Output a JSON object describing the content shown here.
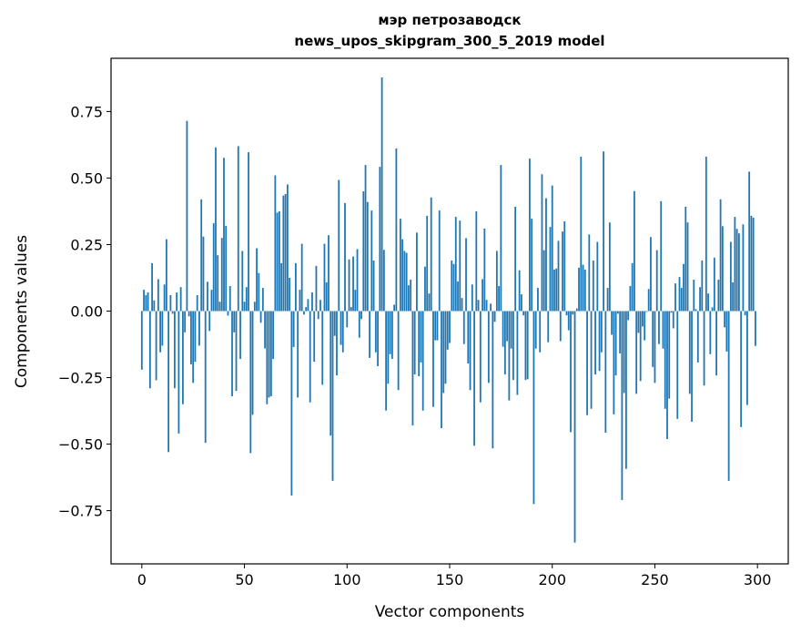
{
  "chart_data": {
    "type": "bar",
    "title": "мэр петрозаводск",
    "subtitle": "news_upos_skipgram_300_5_2019 model",
    "xlabel": "Vector components",
    "ylabel": "Components values",
    "xlim": [
      -15,
      315
    ],
    "ylim": [
      -0.95,
      0.95
    ],
    "xticks": [
      0,
      50,
      100,
      150,
      200,
      250,
      300
    ],
    "xtick_labels": [
      "0",
      "50",
      "100",
      "150",
      "200",
      "250",
      "300"
    ],
    "yticks": [
      -0.75,
      -0.5,
      -0.25,
      0.0,
      0.25,
      0.5,
      0.75
    ],
    "ytick_labels": [
      "−0.75",
      "−0.50",
      "−0.25",
      "0.00",
      "0.25",
      "0.50",
      "0.75"
    ],
    "grid": false,
    "color": "#1f77b4",
    "values": [
      -0.22,
      0.08,
      0.06,
      0.07,
      -0.29,
      0.18,
      0.04,
      -0.26,
      0.12,
      -0.155,
      -0.13,
      0.1,
      0.27,
      -0.53,
      0.06,
      -0.01,
      -0.29,
      0.07,
      -0.46,
      0.09,
      -0.35,
      -0.08,
      0.715,
      -0.02,
      -0.2,
      -0.27,
      -0.19,
      0.06,
      -0.13,
      0.42,
      0.28,
      -0.495,
      0.11,
      -0.075,
      0.08,
      0.33,
      0.615,
      0.21,
      0.035,
      0.275,
      0.576,
      0.32,
      -0.017,
      0.094,
      -0.32,
      -0.08,
      -0.3,
      0.62,
      -0.18,
      0.226,
      0.035,
      0.09,
      0.597,
      -0.534,
      -0.39,
      0.035,
      0.236,
      0.143,
      -0.044,
      0.087,
      -0.14,
      -0.35,
      -0.325,
      -0.32,
      -0.18,
      0.51,
      0.37,
      0.375,
      0.18,
      0.434,
      0.44,
      0.476,
      0.125,
      -0.693,
      -0.135,
      0.18,
      -0.325,
      0.08,
      0.253,
      -0.013,
      0.015,
      0.045,
      -0.343,
      0.07,
      -0.19,
      0.17,
      -0.03,
      0.042,
      -0.277,
      0.253,
      0.108,
      0.285,
      -0.468,
      -0.638,
      -0.093,
      -0.242,
      0.493,
      -0.127,
      -0.155,
      0.406,
      -0.061,
      0.194,
      0.015,
      0.205,
      0.08,
      0.233,
      -0.1,
      -0.03,
      0.45,
      0.549,
      0.41,
      -0.176,
      0.378,
      0.19,
      -0.155,
      -0.207,
      0.542,
      0.878,
      0.23,
      -0.374,
      -0.273,
      -0.162,
      -0.18,
      0.024,
      0.611,
      -0.297,
      0.347,
      0.27,
      0.226,
      0.219,
      0.097,
      0.118,
      -0.43,
      -0.238,
      0.295,
      -0.245,
      -0.193,
      -0.374,
      0.167,
      0.358,
      0.066,
      0.427,
      -0.36,
      -0.11,
      -0.11,
      0.378,
      -0.44,
      -0.308,
      -0.273,
      -0.145,
      -0.12,
      0.19,
      0.177,
      0.354,
      0.111,
      0.34,
      0.049,
      -0.124,
      0.274,
      -0.197,
      -0.297,
      0.1,
      -0.506,
      0.375,
      0.042,
      -0.343,
      0.12,
      0.31,
      0.042,
      -0.27,
      0.028,
      -0.516,
      -0.04,
      0.226,
      0.094,
      0.549,
      -0.134,
      -0.238,
      -0.113,
      -0.336,
      -0.141,
      -0.259,
      0.392,
      -0.315,
      0.153,
      0.063,
      -0.016,
      -0.259,
      -0.256,
      0.573,
      0.347,
      -0.725,
      -0.141,
      0.087,
      -0.155,
      0.514,
      0.229,
      0.424,
      -0.117,
      0.316,
      0.472,
      0.156,
      0.16,
      0.264,
      -0.113,
      0.299,
      0.337,
      -0.016,
      -0.072,
      -0.455,
      -0.013,
      -0.87,
      0.01,
      0.163,
      0.58,
      0.174,
      0.156,
      -0.391,
      0.288,
      -0.367,
      0.19,
      -0.238,
      0.26,
      -0.225,
      -0.155,
      0.6,
      -0.457,
      0.087,
      0.333,
      -0.089,
      -0.388,
      -0.242,
      -0.01,
      -0.159,
      -0.71,
      -0.308,
      -0.593,
      -0.034,
      0.094,
      0.18,
      0.451,
      -0.311,
      -0.082,
      -0.263,
      -0.058,
      -0.11,
      -0.003,
      0.083,
      0.278,
      -0.21,
      -0.27,
      0.229,
      -0.124,
      0.413,
      -0.141,
      -0.367,
      -0.481,
      -0.329,
      -0.006,
      -0.065,
      0.104,
      -0.405,
      0.128,
      0.087,
      0.177,
      0.392,
      0.333,
      -0.311,
      -0.416,
      0.118,
      0.007,
      -0.193,
      0.09,
      0.19,
      -0.28,
      0.58,
      0.066,
      -0.162,
      0.014,
      0.201,
      -0.242,
      0.118,
      0.42,
      0.319,
      -0.061,
      -0.152,
      -0.638,
      0.26,
      0.108,
      0.354,
      0.309,
      0.292,
      -0.436,
      0.326,
      -0.016,
      -0.353,
      0.524,
      0.358,
      0.351,
      -0.131
    ]
  }
}
